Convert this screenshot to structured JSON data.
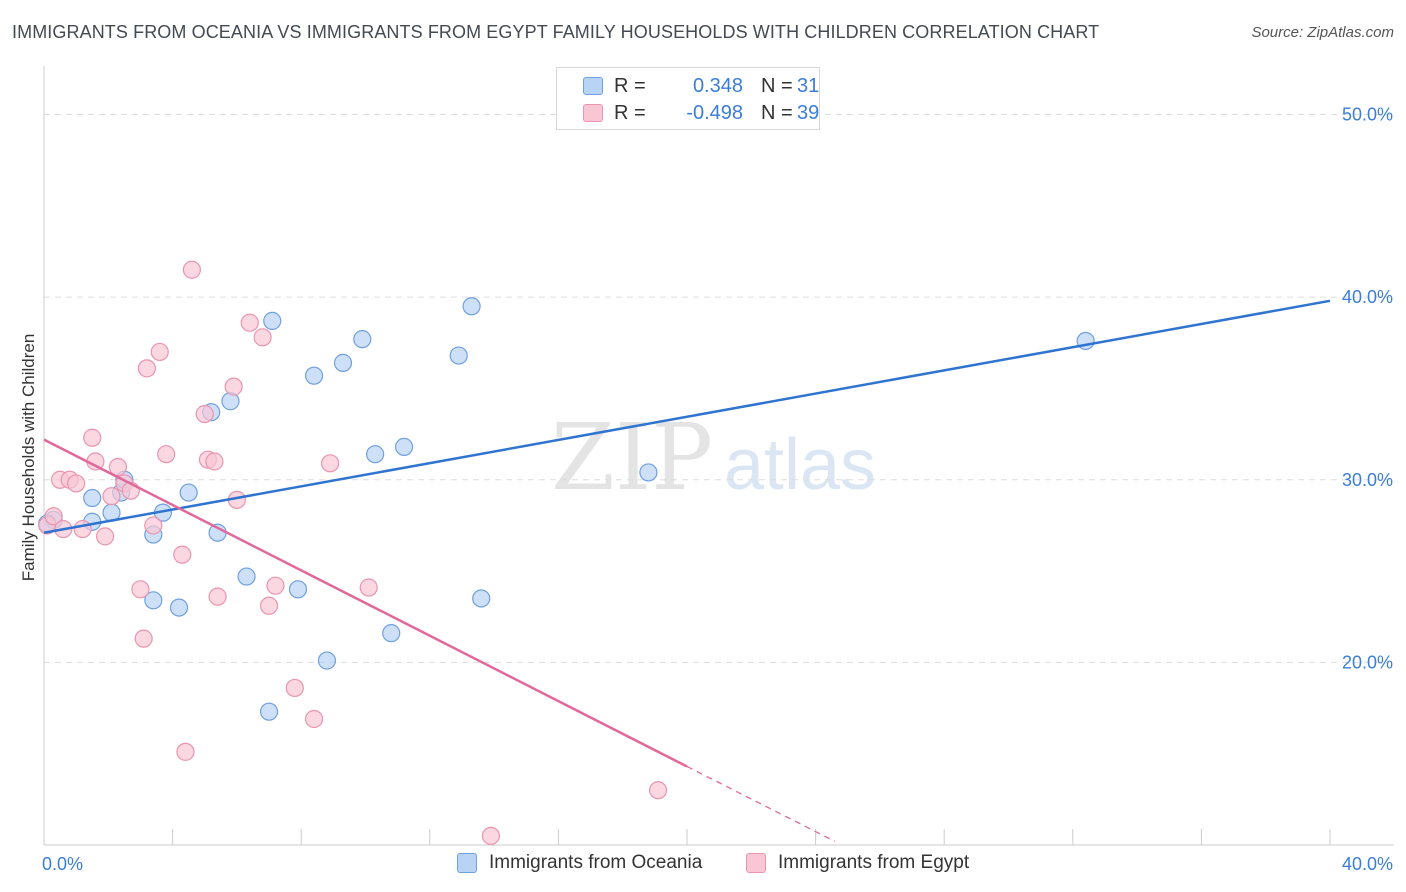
{
  "title": "IMMIGRANTS FROM OCEANIA VS IMMIGRANTS FROM EGYPT FAMILY HOUSEHOLDS WITH CHILDREN CORRELATION CHART",
  "source": "Source: ZipAtlas.com",
  "watermark": {
    "zip": "ZIP",
    "atlas": "atlas"
  },
  "colors": {
    "blue_fill": "#b9d3f5",
    "blue_stroke": "#6fa0e0",
    "blue_line": "#2f74d0",
    "pink_fill": "#f8c6d4",
    "pink_stroke": "#e995b0",
    "pink_line": "#e0699a",
    "tick_label": "#3b7dd8",
    "grid": "#dddddd"
  },
  "legend": {
    "rows": [
      {
        "series": "blue",
        "r_label": "R =",
        "r_value": "0.348",
        "n_label": "N =",
        "n_value": "31"
      },
      {
        "series": "pink",
        "r_label": "R =",
        "r_value": "-0.498",
        "n_label": "N =",
        "n_value": "39"
      }
    ]
  },
  "bottom_legend": [
    {
      "series": "blue",
      "label": "Immigrants from Oceania"
    },
    {
      "series": "pink",
      "label": "Immigrants from Egypt"
    }
  ],
  "chart_data": {
    "type": "scatter",
    "title": "IMMIGRANTS FROM OCEANIA VS IMMIGRANTS FROM EGYPT FAMILY HOUSEHOLDS WITH CHILDREN CORRELATION CHART",
    "xlabel": "",
    "ylabel": "Family Households with Children",
    "xlim": [
      0,
      40
    ],
    "ylim": [
      10,
      52
    ],
    "x_tick_labels": [
      {
        "value": 0,
        "label": "0.0%"
      },
      {
        "value": 40,
        "label": "40.0%"
      }
    ],
    "y_tick_labels": [
      {
        "value": 20,
        "label": "20.0%"
      },
      {
        "value": 30,
        "label": "30.0%"
      },
      {
        "value": 40,
        "label": "40.0%"
      },
      {
        "value": 50,
        "label": "50.0%"
      }
    ],
    "y_gridlines": [
      20,
      30,
      40,
      50
    ],
    "grid": true,
    "legend_position": "top-center",
    "series": [
      {
        "name": "Immigrants from Oceania",
        "color": "blue",
        "R": 0.348,
        "N": 31,
        "trend": {
          "x": [
            0,
            40
          ],
          "y": [
            27.1,
            39.8
          ]
        },
        "points": [
          [
            0.3,
            27.8
          ],
          [
            1.5,
            27.7
          ],
          [
            1.5,
            29.0
          ],
          [
            2.4,
            29.3
          ],
          [
            2.1,
            28.2
          ],
          [
            2.5,
            30.0
          ],
          [
            3.4,
            23.4
          ],
          [
            3.4,
            27.0
          ],
          [
            3.7,
            28.2
          ],
          [
            4.2,
            23.0
          ],
          [
            4.5,
            29.3
          ],
          [
            5.2,
            33.7
          ],
          [
            5.4,
            27.1
          ],
          [
            5.8,
            34.3
          ],
          [
            6.3,
            24.7
          ],
          [
            7.0,
            17.3
          ],
          [
            7.1,
            38.7
          ],
          [
            7.9,
            24.0
          ],
          [
            8.4,
            35.7
          ],
          [
            8.8,
            20.1
          ],
          [
            9.3,
            36.4
          ],
          [
            9.9,
            37.7
          ],
          [
            10.3,
            31.4
          ],
          [
            10.8,
            21.6
          ],
          [
            11.2,
            31.8
          ],
          [
            12.9,
            36.8
          ],
          [
            13.3,
            39.5
          ],
          [
            13.6,
            23.5
          ],
          [
            18.8,
            30.4
          ],
          [
            32.4,
            37.6
          ],
          [
            0.1,
            27.6
          ]
        ]
      },
      {
        "name": "Immigrants from Egypt",
        "color": "pink",
        "R": -0.498,
        "N": 39,
        "trend": {
          "x": [
            0,
            20
          ],
          "y": [
            32.2,
            14.3
          ]
        },
        "trend_dashed": {
          "x": [
            20,
            24.6
          ],
          "y": [
            14.3,
            10.2
          ]
        },
        "points": [
          [
            0.1,
            27.5
          ],
          [
            0.3,
            28.0
          ],
          [
            0.5,
            30.0
          ],
          [
            0.6,
            27.3
          ],
          [
            0.8,
            30.0
          ],
          [
            1.0,
            29.8
          ],
          [
            1.2,
            27.3
          ],
          [
            1.5,
            32.3
          ],
          [
            1.6,
            31.0
          ],
          [
            1.9,
            26.9
          ],
          [
            2.1,
            29.1
          ],
          [
            2.3,
            30.7
          ],
          [
            2.5,
            29.8
          ],
          [
            2.7,
            29.4
          ],
          [
            3.0,
            24.0
          ],
          [
            3.1,
            21.3
          ],
          [
            3.2,
            36.1
          ],
          [
            3.4,
            27.5
          ],
          [
            3.6,
            37.0
          ],
          [
            3.8,
            31.4
          ],
          [
            4.3,
            25.9
          ],
          [
            4.4,
            15.1
          ],
          [
            4.6,
            41.5
          ],
          [
            5.0,
            33.6
          ],
          [
            5.1,
            31.1
          ],
          [
            5.3,
            31.0
          ],
          [
            5.4,
            23.6
          ],
          [
            5.9,
            35.1
          ],
          [
            6.0,
            28.9
          ],
          [
            6.4,
            38.6
          ],
          [
            6.8,
            37.8
          ],
          [
            7.0,
            23.1
          ],
          [
            7.2,
            24.2
          ],
          [
            7.8,
            18.6
          ],
          [
            8.4,
            16.9
          ],
          [
            8.9,
            30.9
          ],
          [
            10.1,
            24.1
          ],
          [
            13.9,
            10.5
          ],
          [
            19.1,
            13.0
          ]
        ]
      }
    ]
  }
}
